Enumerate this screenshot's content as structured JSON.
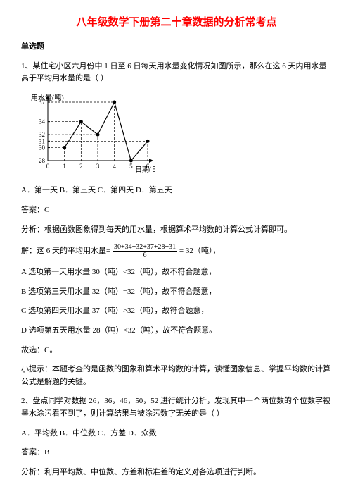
{
  "title": "八年级数学下册第二十章数据的分析常考点",
  "section_head": "单选题",
  "q1_intro": "1、某住宅小区六月份中 1 日至 6 日每天用水量变化情况如图所示，那么在这 6 天内用水量高于平均用水量的是（  ）",
  "chart": {
    "y_label": "用水量(吨)",
    "x_label": "日期(日)",
    "y_ticks": [
      28,
      30,
      31,
      32,
      34,
      37
    ],
    "x_ticks": [
      0,
      1,
      2,
      3,
      4,
      5,
      6
    ],
    "points": [
      {
        "x": 1,
        "y": 30
      },
      {
        "x": 2,
        "y": 34
      },
      {
        "x": 3,
        "y": 32
      },
      {
        "x": 4,
        "y": 37
      },
      {
        "x": 5,
        "y": 28
      },
      {
        "x": 6,
        "y": 31
      }
    ],
    "width": 180,
    "height": 115,
    "stroke": "#000000",
    "dash": "3,2"
  },
  "q1_options": "A．第一天 B．第三天 C．第四天 D．第五天",
  "q1_answer": "答案：C",
  "q1_analysis": "分析：根据函数图象得到每天的用水量，根据算术平均数的计算公式计算即可。",
  "q1_solve_pre": "解：这 6 天的平均用水量=",
  "q1_frac_num": "30+34+32+37+28+31",
  "q1_frac_den": "6",
  "q1_solve_post": " = 32（吨），",
  "q1_optA": "A 选项第一天用水量 30（吨）<32（吨），故不符合题意，",
  "q1_optB": "B 选项第三天用水量 32（吨）=32（吨），故不符合题意，",
  "q1_optC": "C 选项第四天用水量 37（吨）>32（吨），故符合题意，",
  "q1_optD": "D 选项第五天用水量 28（吨）<32（吨），故不符合题意。",
  "q1_final": "故选：C。",
  "q1_tip": "小提示：本题考查的是函数的图象和算术平均数的计算，读懂图象信息、掌握平均数的计算公式是解题的关键。",
  "q2_intro": "2、盘点同学对数据 26，36，46，50，52 进行统计分析，发现其中一个两位数的个位数字被墨水涂污看不到了，则计算结果与被涂污数字无关的是（  ）",
  "q2_options": "A．平均数 B．中位数 C．方差 D．众数",
  "q2_answer": "答案：B",
  "q2_analysis": "分析：利用平均数、中位数、方差和标准差的定义对各选项进行判断。"
}
